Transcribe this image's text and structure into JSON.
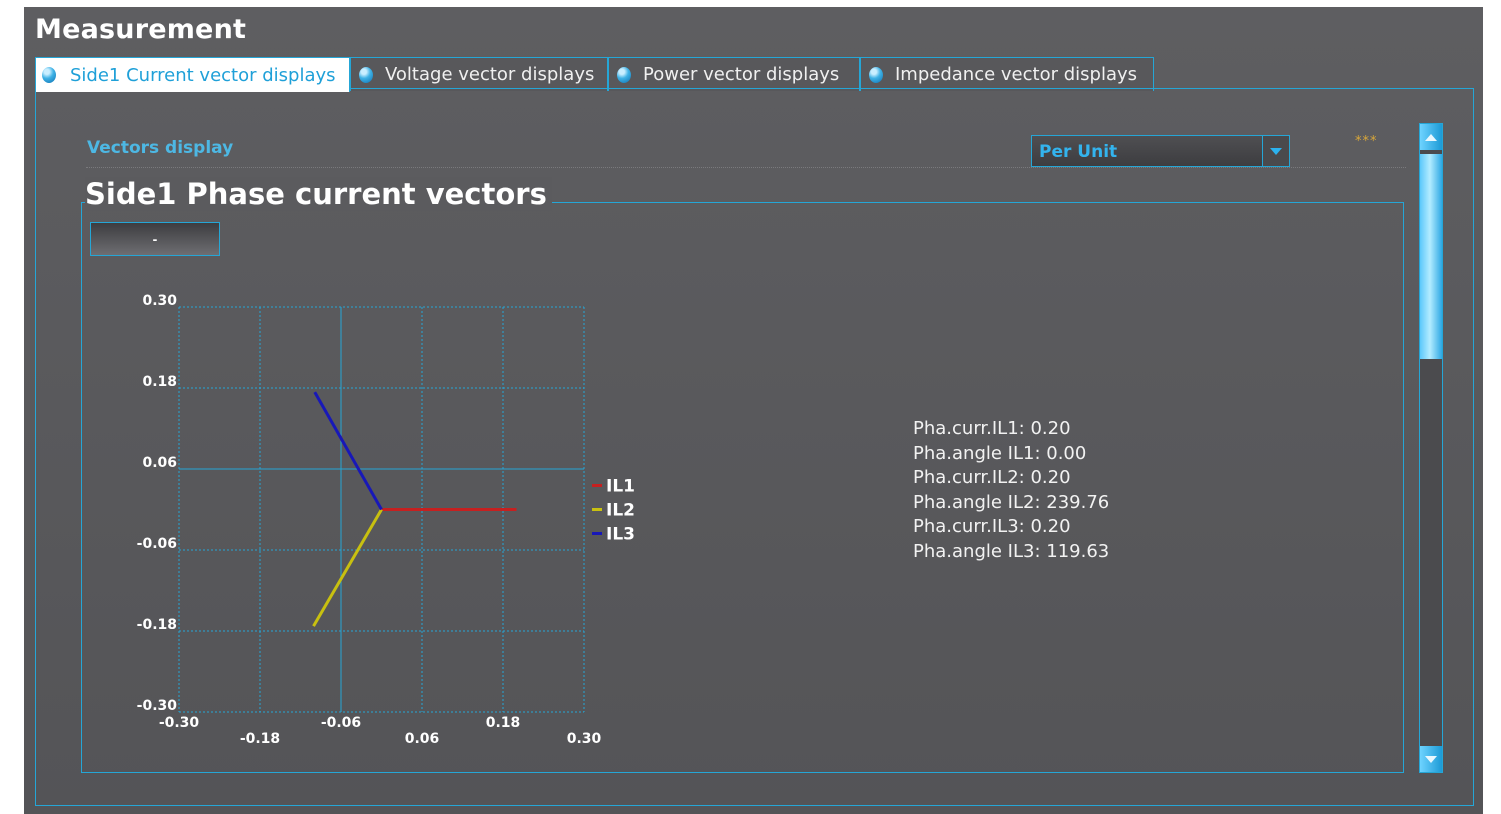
{
  "app": {
    "title": "Measurement"
  },
  "tabs": [
    {
      "label": "Side1 Current vector displays",
      "active": true
    },
    {
      "label": "Voltage vector displays",
      "active": false
    },
    {
      "label": "Power vector displays",
      "active": false
    },
    {
      "label": "Impedance vector displays",
      "active": false
    }
  ],
  "header": {
    "section_label": "Vectors display",
    "unit_select": {
      "value": "Per Unit"
    },
    "indicator": "***"
  },
  "panel": {
    "title": "Side1 Phase current vectors",
    "button_label": "-"
  },
  "readouts": [
    "Pha.curr.IL1: 0.20",
    "Pha.angle IL1: 0.00",
    "Pha.curr.IL2: 0.20",
    "Pha.angle IL2: 239.76",
    "Pha.curr.IL3: 0.20",
    "Pha.angle IL3: 119.63"
  ],
  "colors": {
    "accent": "#25a6d6",
    "IL1": "#c62020",
    "IL2": "#c8c010",
    "IL3": "#1818b8"
  },
  "chart_data": {
    "type": "vector",
    "x_ticks": [
      "-0.30",
      "-0.18",
      "-0.06",
      "0.06",
      "0.18",
      "0.30"
    ],
    "y_ticks": [
      "0.30",
      "0.18",
      "0.06",
      "-0.06",
      "-0.18",
      "-0.30"
    ],
    "xlim": [
      -0.3,
      0.3
    ],
    "ylim": [
      -0.3,
      0.3
    ],
    "grid": true,
    "legend": "right",
    "series": [
      {
        "name": "IL1",
        "magnitude": 0.2,
        "angle_deg": 0.0
      },
      {
        "name": "IL2",
        "magnitude": 0.2,
        "angle_deg": 239.76
      },
      {
        "name": "IL3",
        "magnitude": 0.2,
        "angle_deg": 119.63
      }
    ]
  }
}
